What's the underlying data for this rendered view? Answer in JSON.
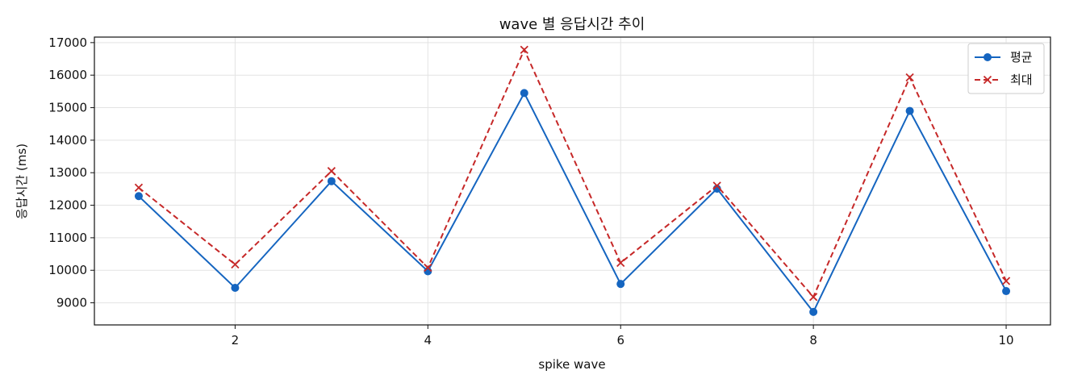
{
  "chart_data": {
    "type": "line",
    "title": "wave 별 응답시간 추이",
    "xlabel": "spike wave",
    "ylabel": "응답시간 (ms)",
    "x": [
      1,
      2,
      3,
      4,
      5,
      6,
      7,
      8,
      9,
      10
    ],
    "xlim": [
      0.54,
      10.46
    ],
    "ylim": [
      8320,
      17170
    ],
    "xticks": [
      2,
      4,
      6,
      8,
      10
    ],
    "yticks": [
      9000,
      10000,
      11000,
      12000,
      13000,
      14000,
      15000,
      16000,
      17000
    ],
    "grid": true,
    "legend_position": "top-right",
    "series": [
      {
        "name": "평균",
        "values": [
          12280,
          9460,
          12740,
          9970,
          15450,
          9580,
          12510,
          8720,
          14900,
          9360
        ],
        "color": "#1565c0",
        "linestyle": "solid",
        "marker": "circle"
      },
      {
        "name": "최대",
        "values": [
          12540,
          10180,
          13050,
          10080,
          16780,
          10230,
          12600,
          9180,
          15930,
          9670
        ],
        "color": "#c62828",
        "linestyle": "dashed",
        "marker": "x"
      }
    ]
  }
}
